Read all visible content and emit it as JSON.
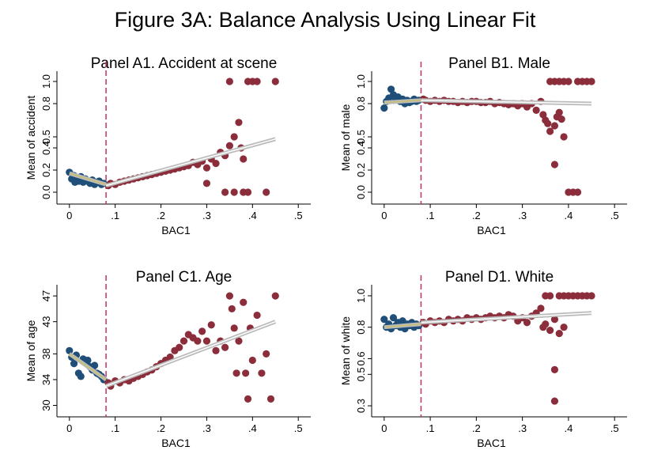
{
  "figure_title": "Figure 3A: Balance Analysis Using Linear Fit",
  "colors": {
    "left": "#1f4e79",
    "right": "#8b2d3b",
    "cutoff": "#c0306a",
    "fit": "#888888",
    "fit_left": "#c8c06a",
    "axis": "#000000"
  },
  "chart_data": [
    {
      "type": "scatter",
      "title": "Panel A1. Accident at scene",
      "xlabel": "BAC1",
      "ylabel": "Mean of accident",
      "xlim": [
        -0.01,
        0.51
      ],
      "ylim": [
        -0.05,
        1.05
      ],
      "x_ticks": [
        0,
        0.1,
        0.2,
        0.3,
        0.4,
        0.5
      ],
      "x_tick_labels": [
        "0",
        ".1",
        ".2",
        ".3",
        ".4",
        ".5"
      ],
      "y_ticks": [
        0,
        0.2,
        0.4,
        0.5,
        0.8,
        1.0
      ],
      "y_tick_labels": [
        "0.0",
        "0.2",
        "0.4",
        "0.5",
        "0.8",
        "1.0"
      ],
      "cutoff": 0.08,
      "left_fit": [
        [
          0,
          0.17
        ],
        [
          0.08,
          0.07
        ]
      ],
      "right_fit": [
        [
          0.08,
          0.06
        ],
        [
          0.45,
          0.48
        ]
      ],
      "points_left": [
        [
          0,
          0.18
        ],
        [
          0.005,
          0.12
        ],
        [
          0.01,
          0.15
        ],
        [
          0.012,
          0.09
        ],
        [
          0.015,
          0.13
        ],
        [
          0.02,
          0.1
        ],
        [
          0.025,
          0.14
        ],
        [
          0.03,
          0.09
        ],
        [
          0.035,
          0.12
        ],
        [
          0.04,
          0.1
        ],
        [
          0.045,
          0.08
        ],
        [
          0.05,
          0.11
        ],
        [
          0.055,
          0.07
        ],
        [
          0.06,
          0.09
        ],
        [
          0.065,
          0.1
        ],
        [
          0.07,
          0.07
        ],
        [
          0.075,
          0.08
        ]
      ],
      "points_right": [
        [
          0.085,
          0.06
        ],
        [
          0.09,
          0.08
        ],
        [
          0.1,
          0.07
        ],
        [
          0.11,
          0.09
        ],
        [
          0.12,
          0.1
        ],
        [
          0.13,
          0.11
        ],
        [
          0.14,
          0.12
        ],
        [
          0.15,
          0.13
        ],
        [
          0.16,
          0.14
        ],
        [
          0.17,
          0.15
        ],
        [
          0.18,
          0.16
        ],
        [
          0.19,
          0.17
        ],
        [
          0.2,
          0.18
        ],
        [
          0.21,
          0.19
        ],
        [
          0.22,
          0.2
        ],
        [
          0.23,
          0.21
        ],
        [
          0.24,
          0.22
        ],
        [
          0.25,
          0.23
        ],
        [
          0.26,
          0.24
        ],
        [
          0.27,
          0.27
        ],
        [
          0.28,
          0.25
        ],
        [
          0.29,
          0.28
        ],
        [
          0.3,
          0.22
        ],
        [
          0.31,
          0.3
        ],
        [
          0.32,
          0.26
        ],
        [
          0.33,
          0.36
        ],
        [
          0.34,
          0.33
        ],
        [
          0.35,
          0.42
        ],
        [
          0.36,
          0.5
        ],
        [
          0.37,
          0.63
        ],
        [
          0.375,
          0.4
        ],
        [
          0.38,
          0.3
        ],
        [
          0.3,
          0.08
        ],
        [
          0.34,
          0.0
        ],
        [
          0.36,
          0.0
        ],
        [
          0.38,
          0.0
        ],
        [
          0.39,
          0.0
        ],
        [
          0.43,
          0.0
        ],
        [
          0.35,
          1.0
        ],
        [
          0.39,
          1.0
        ],
        [
          0.4,
          1.0
        ],
        [
          0.41,
          1.0
        ],
        [
          0.45,
          1.0
        ]
      ]
    },
    {
      "type": "scatter",
      "title": "Panel B1. Male",
      "xlabel": "BAC1",
      "ylabel": "Mean of male",
      "xlim": [
        -0.01,
        0.51
      ],
      "ylim": [
        -0.05,
        1.05
      ],
      "x_ticks": [
        0,
        0.1,
        0.2,
        0.3,
        0.4,
        0.5
      ],
      "x_tick_labels": [
        "0",
        ".1",
        ".2",
        ".3",
        ".4",
        ".5"
      ],
      "y_ticks": [
        0,
        0.2,
        0.4,
        0.5,
        0.8,
        1.0
      ],
      "y_tick_labels": [
        "0.0",
        "0.2",
        "0.4",
        "0.5",
        "0.8",
        "1.0"
      ],
      "cutoff": 0.08,
      "left_fit": [
        [
          0,
          0.81
        ],
        [
          0.08,
          0.83
        ]
      ],
      "right_fit": [
        [
          0.08,
          0.83
        ],
        [
          0.45,
          0.8
        ]
      ],
      "points_left": [
        [
          0,
          0.76
        ],
        [
          0.005,
          0.82
        ],
        [
          0.01,
          0.85
        ],
        [
          0.015,
          0.93
        ],
        [
          0.02,
          0.88
        ],
        [
          0.025,
          0.84
        ],
        [
          0.03,
          0.86
        ],
        [
          0.035,
          0.82
        ],
        [
          0.04,
          0.84
        ],
        [
          0.045,
          0.8
        ],
        [
          0.05,
          0.83
        ],
        [
          0.055,
          0.81
        ],
        [
          0.06,
          0.82
        ],
        [
          0.065,
          0.84
        ],
        [
          0.07,
          0.82
        ],
        [
          0.075,
          0.83
        ]
      ],
      "points_right": [
        [
          0.085,
          0.84
        ],
        [
          0.09,
          0.83
        ],
        [
          0.1,
          0.82
        ],
        [
          0.11,
          0.83
        ],
        [
          0.12,
          0.82
        ],
        [
          0.13,
          0.83
        ],
        [
          0.14,
          0.82
        ],
        [
          0.15,
          0.82
        ],
        [
          0.16,
          0.81
        ],
        [
          0.17,
          0.82
        ],
        [
          0.18,
          0.81
        ],
        [
          0.19,
          0.82
        ],
        [
          0.2,
          0.82
        ],
        [
          0.21,
          0.81
        ],
        [
          0.22,
          0.81
        ],
        [
          0.23,
          0.82
        ],
        [
          0.24,
          0.8
        ],
        [
          0.25,
          0.81
        ],
        [
          0.26,
          0.8
        ],
        [
          0.27,
          0.79
        ],
        [
          0.28,
          0.8
        ],
        [
          0.29,
          0.78
        ],
        [
          0.3,
          0.8
        ],
        [
          0.31,
          0.77
        ],
        [
          0.32,
          0.8
        ],
        [
          0.33,
          0.74
        ],
        [
          0.34,
          0.82
        ],
        [
          0.345,
          0.7
        ],
        [
          0.35,
          0.65
        ],
        [
          0.355,
          0.62
        ],
        [
          0.36,
          0.55
        ],
        [
          0.37,
          0.6
        ],
        [
          0.375,
          0.68
        ],
        [
          0.38,
          0.72
        ],
        [
          0.385,
          0.66
        ],
        [
          0.39,
          0.5
        ],
        [
          0.37,
          0.25
        ],
        [
          0.4,
          0.0
        ],
        [
          0.41,
          0.0
        ],
        [
          0.42,
          0.0
        ],
        [
          0.36,
          1.0
        ],
        [
          0.37,
          1.0
        ],
        [
          0.38,
          1.0
        ],
        [
          0.39,
          1.0
        ],
        [
          0.4,
          1.0
        ],
        [
          0.42,
          1.0
        ],
        [
          0.43,
          1.0
        ],
        [
          0.44,
          1.0
        ],
        [
          0.45,
          1.0
        ]
      ]
    },
    {
      "type": "scatter",
      "title": "Panel C1. Age",
      "xlabel": "BAC1",
      "ylabel": "Mean of age",
      "xlim": [
        -0.01,
        0.51
      ],
      "ylim": [
        29.2,
        48
      ],
      "x_ticks": [
        0,
        0.1,
        0.2,
        0.3,
        0.4,
        0.5
      ],
      "x_tick_labels": [
        "0",
        ".1",
        ".2",
        ".3",
        ".4",
        ".5"
      ],
      "y_ticks": [
        30,
        34,
        38,
        43,
        47
      ],
      "y_tick_labels": [
        "30",
        "34",
        "38",
        "43",
        "47"
      ],
      "cutoff": 0.08,
      "left_fit": [
        [
          0,
          38.0
        ],
        [
          0.08,
          34.0
        ]
      ],
      "right_fit": [
        [
          0.08,
          33.0
        ],
        [
          0.45,
          43.0
        ]
      ],
      "points_left": [
        [
          0,
          38.5
        ],
        [
          0.005,
          37.5
        ],
        [
          0.01,
          36.5
        ],
        [
          0.015,
          37.8
        ],
        [
          0.02,
          35.0
        ],
        [
          0.025,
          34.5
        ],
        [
          0.03,
          37.2
        ],
        [
          0.035,
          36.8
        ],
        [
          0.04,
          37.0
        ],
        [
          0.045,
          36.0
        ],
        [
          0.05,
          35.5
        ],
        [
          0.055,
          36.2
        ],
        [
          0.06,
          35.0
        ],
        [
          0.065,
          34.8
        ],
        [
          0.07,
          34.5
        ],
        [
          0.075,
          34.0
        ]
      ],
      "points_right": [
        [
          0.085,
          33.5
        ],
        [
          0.09,
          33.0
        ],
        [
          0.1,
          33.8
        ],
        [
          0.11,
          33.5
        ],
        [
          0.12,
          34.0
        ],
        [
          0.13,
          33.8
        ],
        [
          0.14,
          34.2
        ],
        [
          0.15,
          34.5
        ],
        [
          0.16,
          34.8
        ],
        [
          0.17,
          35.2
        ],
        [
          0.18,
          35.5
        ],
        [
          0.19,
          36.0
        ],
        [
          0.2,
          36.5
        ],
        [
          0.21,
          37.0
        ],
        [
          0.22,
          37.5
        ],
        [
          0.23,
          38.5
        ],
        [
          0.24,
          39.0
        ],
        [
          0.25,
          40.0
        ],
        [
          0.26,
          41.0
        ],
        [
          0.27,
          40.5
        ],
        [
          0.28,
          40.0
        ],
        [
          0.29,
          41.5
        ],
        [
          0.3,
          40.0
        ],
        [
          0.31,
          42.5
        ],
        [
          0.32,
          38.5
        ],
        [
          0.33,
          40.0
        ],
        [
          0.34,
          39.0
        ],
        [
          0.35,
          47.0
        ],
        [
          0.355,
          45.0
        ],
        [
          0.36,
          42.0
        ],
        [
          0.365,
          35.0
        ],
        [
          0.37,
          40.0
        ],
        [
          0.38,
          46.0
        ],
        [
          0.385,
          35.0
        ],
        [
          0.39,
          31.0
        ],
        [
          0.395,
          42.0
        ],
        [
          0.4,
          37.0
        ],
        [
          0.41,
          44.0
        ],
        [
          0.42,
          35.0
        ],
        [
          0.43,
          38.0
        ],
        [
          0.44,
          31.0
        ],
        [
          0.45,
          47.0
        ]
      ]
    },
    {
      "type": "scatter",
      "title": "Panel D1. White",
      "xlabel": "BAC1",
      "ylabel": "Mean of white",
      "xlim": [
        -0.01,
        0.51
      ],
      "ylim": [
        0.27,
        1.04
      ],
      "x_ticks": [
        0,
        0.1,
        0.2,
        0.3,
        0.4,
        0.5
      ],
      "x_tick_labels": [
        "0",
        ".1",
        ".2",
        ".3",
        ".4",
        ".5"
      ],
      "y_ticks": [
        0.3,
        0.5,
        0.6,
        0.8,
        1.0
      ],
      "y_tick_labels": [
        "0.3",
        "0.5",
        "0.6",
        "0.8",
        "1.0"
      ],
      "cutoff": 0.08,
      "left_fit": [
        [
          0,
          0.8
        ],
        [
          0.08,
          0.82
        ]
      ],
      "right_fit": [
        [
          0.08,
          0.83
        ],
        [
          0.45,
          0.89
        ]
      ],
      "points_left": [
        [
          0,
          0.85
        ],
        [
          0.005,
          0.8
        ],
        [
          0.01,
          0.82
        ],
        [
          0.015,
          0.79
        ],
        [
          0.02,
          0.86
        ],
        [
          0.025,
          0.81
        ],
        [
          0.03,
          0.83
        ],
        [
          0.035,
          0.8
        ],
        [
          0.04,
          0.84
        ],
        [
          0.045,
          0.79
        ],
        [
          0.05,
          0.82
        ],
        [
          0.055,
          0.81
        ],
        [
          0.06,
          0.83
        ],
        [
          0.065,
          0.8
        ],
        [
          0.07,
          0.82
        ],
        [
          0.075,
          0.81
        ]
      ],
      "points_right": [
        [
          0.085,
          0.83
        ],
        [
          0.09,
          0.82
        ],
        [
          0.1,
          0.84
        ],
        [
          0.11,
          0.83
        ],
        [
          0.12,
          0.84
        ],
        [
          0.13,
          0.83
        ],
        [
          0.14,
          0.85
        ],
        [
          0.15,
          0.84
        ],
        [
          0.16,
          0.85
        ],
        [
          0.17,
          0.84
        ],
        [
          0.18,
          0.86
        ],
        [
          0.19,
          0.85
        ],
        [
          0.2,
          0.86
        ],
        [
          0.21,
          0.85
        ],
        [
          0.22,
          0.86
        ],
        [
          0.23,
          0.87
        ],
        [
          0.24,
          0.86
        ],
        [
          0.25,
          0.87
        ],
        [
          0.26,
          0.86
        ],
        [
          0.27,
          0.88
        ],
        [
          0.28,
          0.87
        ],
        [
          0.29,
          0.84
        ],
        [
          0.3,
          0.86
        ],
        [
          0.31,
          0.83
        ],
        [
          0.32,
          0.87
        ],
        [
          0.33,
          0.89
        ],
        [
          0.34,
          0.92
        ],
        [
          0.345,
          0.8
        ],
        [
          0.35,
          0.82
        ],
        [
          0.36,
          0.78
        ],
        [
          0.37,
          0.85
        ],
        [
          0.38,
          0.76
        ],
        [
          0.39,
          0.8
        ],
        [
          0.37,
          0.53
        ],
        [
          0.37,
          0.33
        ],
        [
          0.35,
          1.0
        ],
        [
          0.36,
          1.0
        ],
        [
          0.38,
          1.0
        ],
        [
          0.39,
          1.0
        ],
        [
          0.4,
          1.0
        ],
        [
          0.41,
          1.0
        ],
        [
          0.42,
          1.0
        ],
        [
          0.43,
          1.0
        ],
        [
          0.44,
          1.0
        ],
        [
          0.45,
          1.0
        ]
      ]
    }
  ]
}
